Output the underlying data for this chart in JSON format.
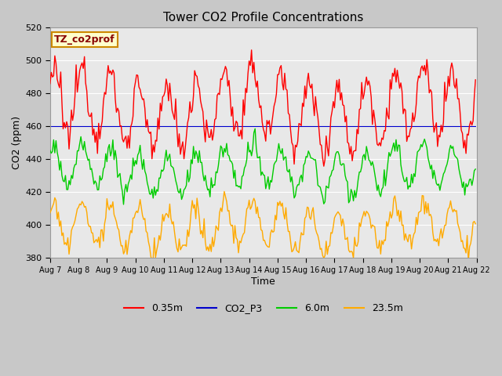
{
  "title": "Tower CO2 Profile Concentrations",
  "xlabel": "Time",
  "ylabel": "CO2 (ppm)",
  "ylim": [
    380,
    520
  ],
  "yticks": [
    380,
    400,
    420,
    440,
    460,
    480,
    500,
    520
  ],
  "xtick_labels": [
    "Aug 7",
    "Aug 8",
    "Aug 9",
    "Aug 10",
    "Aug 11",
    "Aug 12",
    "Aug 13",
    "Aug 14",
    "Aug 15",
    "Aug 16",
    "Aug 17",
    "Aug 18",
    "Aug 19",
    "Aug 20",
    "Aug 21",
    "Aug 22"
  ],
  "fig_facecolor": "#c8c8c8",
  "axes_facecolor": "#e8e8e8",
  "grid_color": "#ffffff",
  "line_colors": {
    "0.35m": "#ff0000",
    "CO2_P3": "#0000cc",
    "6.0m": "#00cc00",
    "23.5m": "#ffaa00"
  },
  "legend_label": "TZ_co2prof",
  "legend_bg": "#ffffcc",
  "legend_border": "#cc8800"
}
